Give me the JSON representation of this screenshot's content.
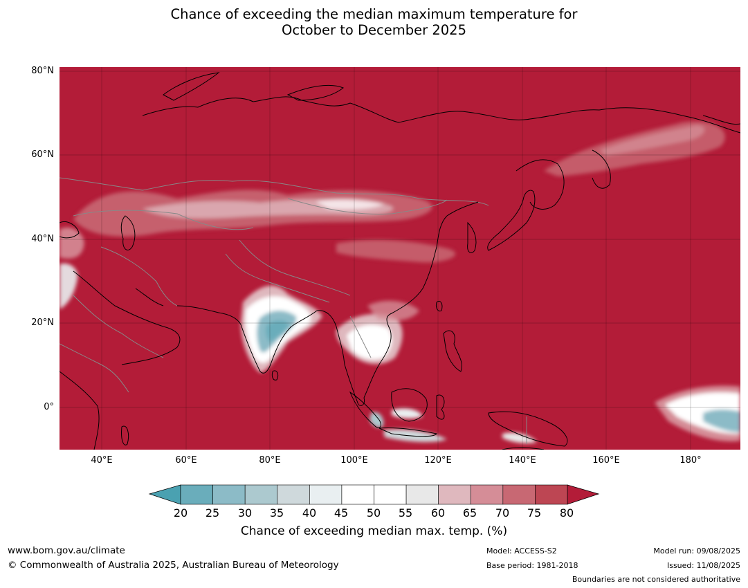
{
  "title": {
    "line1": "Chance of exceeding the median maximum temperature for",
    "line2": "October to December 2025"
  },
  "map": {
    "lat_labels": [
      "80°N",
      "60°N",
      "40°N",
      "20°N",
      "0°"
    ],
    "lon_labels": [
      "40°E",
      "60°E",
      "80°E",
      "100°E",
      "120°E",
      "140°E",
      "160°E",
      "180°"
    ],
    "lat_range": [
      -10,
      81
    ],
    "lon_range": [
      30,
      192
    ],
    "background_color": "#b31c38",
    "coast_color": "#000000",
    "border_color": "#888888"
  },
  "colorbar": {
    "ticks": [
      "20",
      "25",
      "30",
      "35",
      "40",
      "45",
      "50",
      "55",
      "60",
      "65",
      "70",
      "75",
      "80"
    ],
    "colors": [
      "#6aadbb",
      "#8cbbc7",
      "#acc9cf",
      "#cfd9dc",
      "#e9eff1",
      "#ffffff",
      "#ffffff",
      "#e8e8e8",
      "#dfb8be",
      "#d58d97",
      "#c86873",
      "#bd4653"
    ],
    "under_color": "#4aa1b1",
    "over_color": "#b31c38",
    "label": "Chance of exceeding median max. temp. (%)"
  },
  "footer": {
    "url": "www.bom.gov.au/climate",
    "copyright": "© Commonwealth of Australia 2025, Australian Bureau of Meteorology",
    "model": "Model: ACCESS-S2",
    "base_period": "Base period: 1981-2018",
    "model_run": "Model run: 09/08/2025",
    "issued": "Issued: 11/08/2025",
    "disclaimer": "Boundaries are not considered authoritative"
  }
}
